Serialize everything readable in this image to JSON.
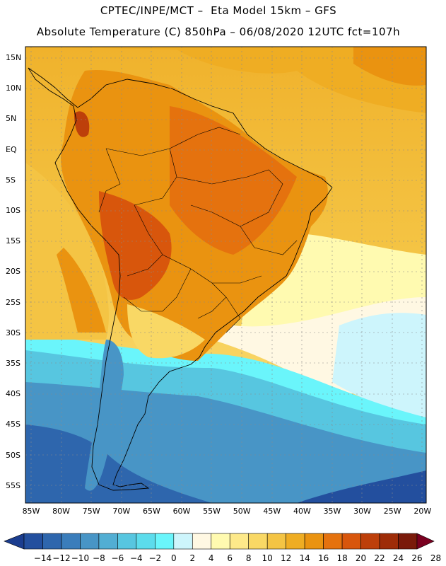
{
  "header": {
    "line1": "CPTEC/INPE/MCT –  Eta Model 15km – GFS",
    "line2": "Absolute Temperature (C) 850hPa – 06/08/2020 12UTC fct=107h"
  },
  "map": {
    "lat_labels": [
      "15N",
      "10N",
      "5N",
      "EQ",
      "5S",
      "10S",
      "15S",
      "20S",
      "25S",
      "30S",
      "35S",
      "40S",
      "45S",
      "50S",
      "55S"
    ],
    "lon_labels": [
      "85W",
      "80W",
      "75W",
      "70W",
      "65W",
      "60W",
      "55W",
      "50W",
      "45W",
      "40W",
      "35W",
      "30W",
      "25W",
      "20W"
    ],
    "field": "Absolute Temperature (C) at 850hPa"
  },
  "colorbar": {
    "labels": [
      "-14",
      "-12",
      "-10",
      "-8",
      "-6",
      "-4",
      "-2",
      "0",
      "2",
      "4",
      "6",
      "8",
      "10",
      "12",
      "14",
      "16",
      "18",
      "20",
      "22",
      "24",
      "26",
      "28"
    ],
    "colors": [
      "#1b3d8f",
      "#234f9e",
      "#2e66ad",
      "#3a7dbb",
      "#4895c6",
      "#52aed3",
      "#57c6e0",
      "#5cdcec",
      "#6af5fb",
      "#cdf5fc",
      "#fff8e3",
      "#fffab0",
      "#fde98a",
      "#f9d865",
      "#f4c444",
      "#efad23",
      "#ea9310",
      "#e5720e",
      "#d8560c",
      "#bd3f0a",
      "#9e2c08",
      "#7a1a0a",
      "#7a0020"
    ]
  }
}
